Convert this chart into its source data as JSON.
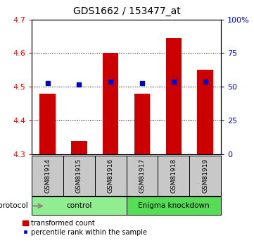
{
  "title": "GDS1662 / 153477_at",
  "samples": [
    "GSM81914",
    "GSM81915",
    "GSM81916",
    "GSM81917",
    "GSM81918",
    "GSM81919"
  ],
  "red_values": [
    4.48,
    4.34,
    4.6,
    4.48,
    4.645,
    4.55
  ],
  "blue_values": [
    53,
    52,
    54,
    53,
    54,
    54
  ],
  "ymin": 4.3,
  "ymax": 4.7,
  "y2min": 0,
  "y2max": 100,
  "yticks": [
    4.3,
    4.4,
    4.5,
    4.6,
    4.7
  ],
  "y2ticks": [
    0,
    25,
    50,
    75,
    100
  ],
  "y2ticklabels": [
    "0",
    "25",
    "50",
    "75",
    "100%"
  ],
  "groups": [
    {
      "label": "control",
      "color": "#90EE90",
      "start": 0,
      "end": 3
    },
    {
      "label": "Enigma knockdown",
      "color": "#55DD55",
      "start": 3,
      "end": 6
    }
  ],
  "protocol_label": "protocol",
  "legend_red": "transformed count",
  "legend_blue": "percentile rank within the sample",
  "bar_color": "#CC0000",
  "dot_color": "#0000CC",
  "sample_bg": "#C8C8C8"
}
